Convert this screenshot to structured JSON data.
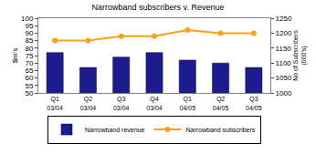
{
  "chart_data": {
    "type": "bar",
    "title": "Narrowband subscribers v. Revenue",
    "y_label": "$m's",
    "y2_label": "No of Subscribers (000's)",
    "categories": [
      "Q1 03/04",
      "Q2 03/04",
      "Q3 03/04",
      "Q4 03/04",
      "Q1 04/05",
      "Q2 04/05",
      "Q3 04/05"
    ],
    "series": [
      {
        "name": "Narrowband revenue",
        "type": "bar",
        "color": "#1c1c8f",
        "values": [
          77,
          67,
          74,
          77,
          72,
          70,
          67
        ]
      },
      {
        "name": "Narrowband subscribers",
        "type": "line",
        "color": "#f7a21b",
        "marker": "circle",
        "axis": "y2",
        "values": [
          1175,
          1175,
          1190,
          1190,
          1210,
          1200,
          1200
        ]
      }
    ],
    "ylim": [
      50,
      100
    ],
    "yticks": [
      50,
      55,
      60,
      65,
      70,
      75,
      80,
      85,
      90,
      95,
      100
    ],
    "y2lim": [
      1000,
      1250
    ],
    "y2ticks": [
      1000,
      1050,
      1100,
      1150,
      1200,
      1250
    ],
    "grid": false,
    "legend": "bottom"
  }
}
